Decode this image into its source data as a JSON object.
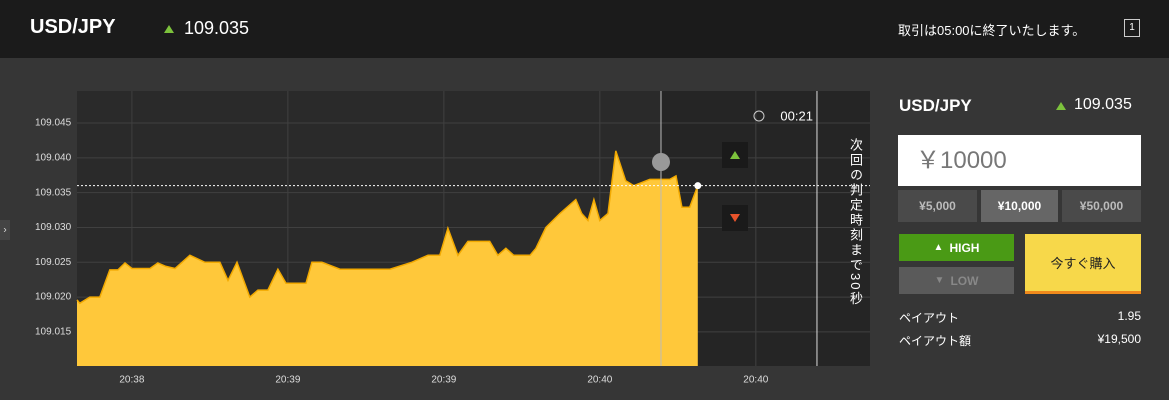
{
  "header": {
    "symbol": "USD/JPY",
    "price": "109.035",
    "notice": "取引は05:00に終了いたします。",
    "badge": "1"
  },
  "chart_data": {
    "type": "area",
    "x": [
      38.324,
      38.333,
      38.365,
      38.397,
      38.429,
      38.455,
      38.478,
      38.5,
      38.526,
      38.558,
      38.583,
      38.609,
      38.638,
      38.686,
      38.734,
      38.782,
      38.808,
      38.837,
      38.878,
      38.904,
      38.936,
      38.968,
      38.994,
      39.026,
      39.058,
      39.077,
      39.109,
      39.167,
      39.231,
      39.327,
      39.397,
      39.449,
      39.487,
      39.513,
      39.545,
      39.577,
      39.647,
      39.673,
      39.699,
      39.724,
      39.776,
      39.795,
      39.827,
      39.872,
      39.923,
      39.942,
      39.962,
      39.981,
      40.0,
      40.026,
      40.051,
      40.083,
      40.109,
      40.16,
      40.224,
      40.244,
      40.263,
      40.288,
      40.314
    ],
    "values": [
      109.0196,
      109.0191,
      109.02,
      109.02,
      109.0239,
      109.0239,
      109.0249,
      109.0241,
      109.0241,
      109.0241,
      109.0249,
      109.0244,
      109.0241,
      109.026,
      109.025,
      109.025,
      109.0224,
      109.025,
      109.02,
      109.021,
      109.021,
      109.024,
      109.022,
      109.022,
      109.022,
      109.025,
      109.025,
      109.024,
      109.024,
      109.024,
      109.025,
      109.026,
      109.026,
      109.0299,
      109.026,
      109.028,
      109.028,
      109.026,
      109.027,
      109.026,
      109.026,
      109.027,
      109.03,
      109.032,
      109.034,
      109.032,
      109.031,
      109.034,
      109.031,
      109.032,
      109.041,
      109.0367,
      109.036,
      109.0369,
      109.0369,
      109.0374,
      109.0329,
      109.0329,
      109.036
    ],
    "color": "#ffc83a",
    "line_color": "#f2a900",
    "xlim": [
      38.324,
      40.866
    ],
    "ylim": [
      109.0101,
      109.0496
    ],
    "xticks": [
      {
        "value": 38.5,
        "label": "20:38"
      },
      {
        "value": 39,
        "label": "20:39"
      },
      {
        "value": 39.5,
        "label": "20:39"
      },
      {
        "value": 40,
        "label": "20:40"
      },
      {
        "value": 40.5,
        "label": "20:40"
      }
    ],
    "yticks": [
      109.015,
      {
        "value": 109.02,
        "label": "109.020"
      },
      109.025,
      {
        "value": 109.03,
        "label": "109.030"
      },
      109.035,
      {
        "value": 109.04,
        "label": "109.040"
      },
      109.045
    ],
    "grid": true,
    "current_value": 109.036,
    "entry_x": 40.196,
    "deadline_x": 40.696,
    "timer": "00:21",
    "deadline_note": "次回の判定時刻まで30秒"
  },
  "panel": {
    "symbol": "USD/JPY",
    "price": "109.035",
    "amount": "￥10000",
    "presets": [
      "¥5,000",
      "¥10,000",
      "¥50,000"
    ],
    "high": "HIGH",
    "low": "LOW",
    "buy": "今すぐ購入",
    "payout_label": "ペイアウト",
    "payout": "1.95",
    "payout_amount_label": "ペイアウト額",
    "payout_amount": "¥19,500"
  }
}
